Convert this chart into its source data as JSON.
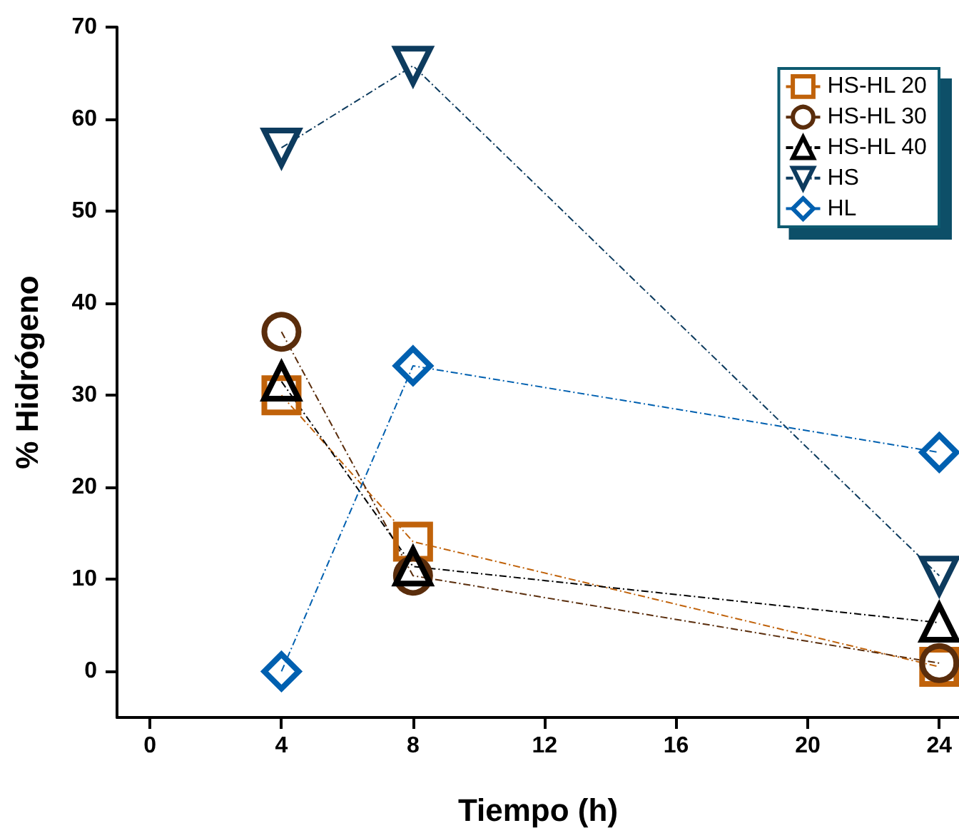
{
  "chart_data": {
    "type": "line",
    "xlabel": "Tiempo (h)",
    "ylabel": "% Hidrógeno",
    "x": [
      4,
      8,
      24
    ],
    "series": [
      {
        "name": "HS-HL 20",
        "color": "#c0620a",
        "marker": "square",
        "values": [
          30.0,
          14.1,
          0.5
        ]
      },
      {
        "name": "HS-HL 30",
        "color": "#5a2d0c",
        "marker": "circle",
        "values": [
          36.9,
          10.4,
          0.9
        ]
      },
      {
        "name": "HS-HL 40",
        "color": "#000000",
        "marker": "triangle",
        "values": [
          31.5,
          11.4,
          5.3
        ]
      },
      {
        "name": "HS",
        "color": "#0d3b5e",
        "marker": "triangle-down",
        "values": [
          56.9,
          65.8,
          10.4
        ]
      },
      {
        "name": "HL",
        "color": "#0060b0",
        "marker": "diamond",
        "values": [
          0,
          33.2,
          23.8
        ]
      }
    ],
    "xlim": [
      -1,
      24.6
    ],
    "xticks": [
      0,
      4,
      8,
      12,
      16,
      20,
      24
    ],
    "ylim": [
      -5,
      70
    ],
    "yticks": [
      0,
      10,
      20,
      30,
      40,
      50,
      60,
      70
    ],
    "grid": false,
    "legend": "top right",
    "line_style": "dashed"
  }
}
